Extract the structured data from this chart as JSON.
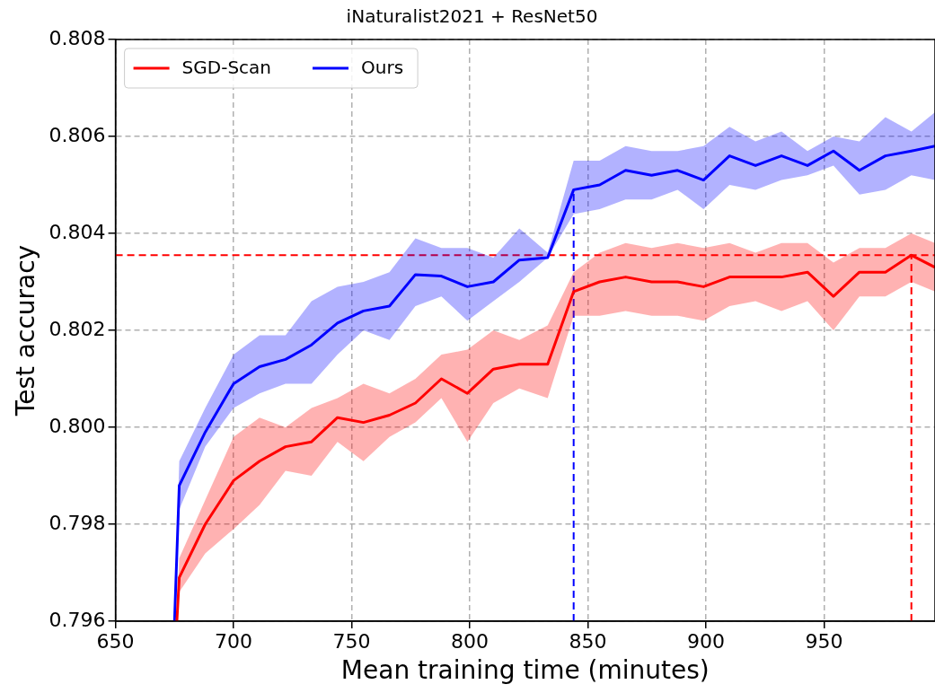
{
  "chart_data": {
    "type": "line",
    "title": "iNaturalist2021 + ResNet50",
    "xlabel": "Mean training time (minutes)",
    "ylabel": "Test accuracy",
    "xlim": [
      650,
      997
    ],
    "xticks": [
      650,
      700,
      750,
      800,
      850,
      900,
      950
    ],
    "ylim": [
      0.796,
      0.808
    ],
    "yticks": [
      0.796,
      0.798,
      {
        "value": 0.8,
        "label": "0.800"
      },
      0.802,
      0.804,
      0.806,
      0.808
    ],
    "grid": true,
    "legend": "top left",
    "line_style": "solid",
    "marker": "none",
    "series": [
      {
        "name": "SGD-Scan",
        "color": "#ff0000",
        "x": [
          676,
          677,
          688,
          700,
          711,
          722,
          733,
          744,
          755,
          766,
          777,
          788,
          799,
          810,
          821,
          833,
          844,
          855,
          866,
          877,
          888,
          899,
          910,
          921,
          932,
          943,
          954,
          965,
          976,
          987,
          997
        ],
        "values": [
          0.796,
          0.7969,
          0.798,
          0.7989,
          0.7993,
          0.7996,
          0.7997,
          0.8002,
          0.8001,
          0.80025,
          0.8005,
          0.801,
          0.8007,
          0.8012,
          0.8013,
          0.8013,
          0.8028,
          0.803,
          0.8031,
          0.803,
          0.803,
          0.8029,
          0.8031,
          0.8031,
          0.8031,
          0.8032,
          0.8027,
          0.8032,
          0.8032,
          0.80355,
          0.8033
        ],
        "lower": [
          0.796,
          0.7966,
          0.7974,
          0.7979,
          0.7984,
          0.7991,
          0.799,
          0.7997,
          0.7993,
          0.7998,
          0.8001,
          0.8006,
          0.7997,
          0.8005,
          0.8008,
          0.8006,
          0.8023,
          0.8023,
          0.8024,
          0.8023,
          0.8023,
          0.8022,
          0.8025,
          0.8026,
          0.8024,
          0.8026,
          0.802,
          0.8027,
          0.8027,
          0.803,
          0.8028
        ],
        "upper": [
          0.796,
          0.7973,
          0.7985,
          0.7998,
          0.8002,
          0.8,
          0.8004,
          0.8006,
          0.8009,
          0.8007,
          0.801,
          0.8015,
          0.8016,
          0.802,
          0.8018,
          0.8021,
          0.8032,
          0.8036,
          0.8038,
          0.8037,
          0.8038,
          0.8037,
          0.8038,
          0.8036,
          0.8038,
          0.8038,
          0.8034,
          0.8037,
          0.8037,
          0.804,
          0.8038
        ]
      },
      {
        "name": "Ours",
        "color": "#0000ff",
        "x": [
          675,
          677,
          688,
          700,
          711,
          722,
          733,
          744,
          755,
          766,
          777,
          788,
          799,
          810,
          821,
          833,
          844,
          855,
          866,
          877,
          888,
          899,
          910,
          921,
          932,
          943,
          954,
          965,
          976,
          987,
          997
        ],
        "values": [
          0.796,
          0.7988,
          0.7999,
          0.8009,
          0.80125,
          0.8014,
          0.8017,
          0.80215,
          0.8024,
          0.8025,
          0.80315,
          0.80312,
          0.8029,
          0.803,
          0.80345,
          0.8035,
          0.8049,
          0.805,
          0.8053,
          0.8052,
          0.8053,
          0.8051,
          0.8056,
          0.8054,
          0.8056,
          0.8054,
          0.8057,
          0.8053,
          0.8056,
          0.8057,
          0.8058
        ],
        "lower": [
          0.796,
          0.7983,
          0.7996,
          0.8004,
          0.8007,
          0.8009,
          0.8009,
          0.8015,
          0.802,
          0.8018,
          0.8025,
          0.8027,
          0.8022,
          0.8026,
          0.803,
          0.8035,
          0.8044,
          0.8045,
          0.8047,
          0.8047,
          0.8049,
          0.8045,
          0.805,
          0.8049,
          0.8051,
          0.8052,
          0.8054,
          0.8048,
          0.8049,
          0.8052,
          0.8051
        ],
        "upper": [
          0.796,
          0.7993,
          0.8004,
          0.8015,
          0.8019,
          0.8019,
          0.8026,
          0.8029,
          0.803,
          0.8032,
          0.8039,
          0.8037,
          0.8037,
          0.8035,
          0.8041,
          0.8036,
          0.8055,
          0.8055,
          0.8058,
          0.8057,
          0.8057,
          0.8058,
          0.8062,
          0.8059,
          0.8061,
          0.8057,
          0.806,
          0.8059,
          0.8064,
          0.8061,
          0.8065
        ]
      }
    ],
    "ref_lines": [
      {
        "axis": "y",
        "value": 0.80355,
        "color": "#ff0000",
        "line_style": "dashed"
      },
      {
        "axis": "x",
        "value": 844,
        "color": "#0000ff",
        "line_style": "dashed"
      },
      {
        "axis": "x",
        "value": 987,
        "color": "#ff0000",
        "line_style": "dashed"
      }
    ]
  }
}
